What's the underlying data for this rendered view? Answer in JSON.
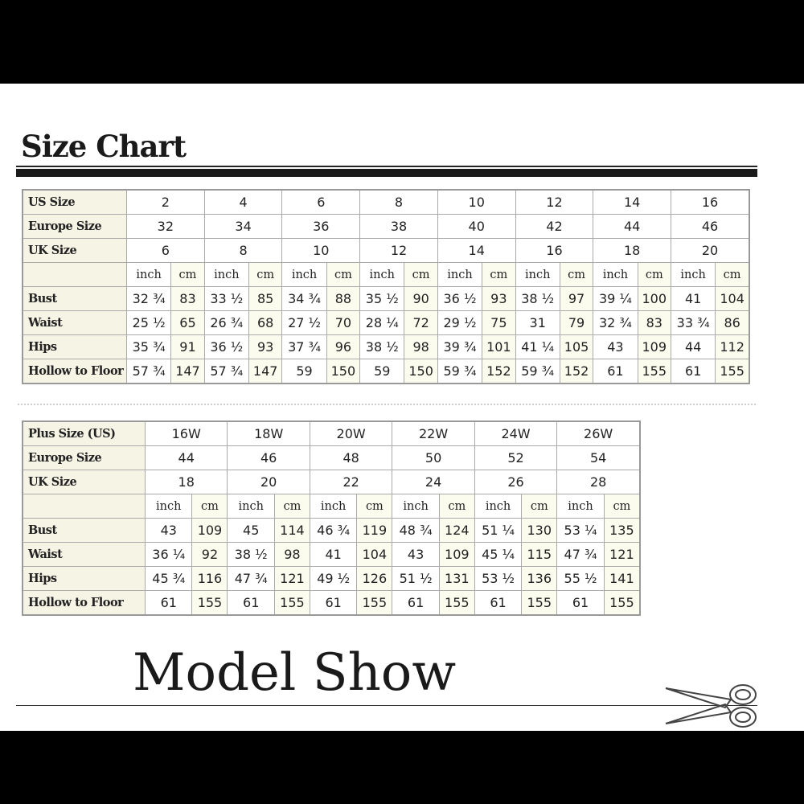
{
  "title": "Size Chart",
  "standard": {
    "header_rows": [
      {
        "label": "US Size",
        "values": [
          "2",
          "4",
          "6",
          "8",
          "10",
          "12",
          "14",
          "16"
        ]
      },
      {
        "label": "Europe Size",
        "values": [
          "32",
          "34",
          "36",
          "38",
          "40",
          "42",
          "44",
          "46"
        ]
      },
      {
        "label": "UK Size",
        "values": [
          "6",
          "8",
          "10",
          "12",
          "14",
          "16",
          "18",
          "20"
        ]
      }
    ],
    "units": [
      "inch",
      "cm"
    ],
    "measure_rows": [
      {
        "label": "Bust",
        "values": [
          "32 ¾",
          "83",
          "33 ½",
          "85",
          "34 ¾",
          "88",
          "35 ½",
          "90",
          "36 ½",
          "93",
          "38 ½",
          "97",
          "39 ¼",
          "100",
          "41",
          "104"
        ]
      },
      {
        "label": "Waist",
        "values": [
          "25 ½",
          "65",
          "26 ¾",
          "68",
          "27 ½",
          "70",
          "28 ¼",
          "72",
          "29 ½",
          "75",
          "31",
          "79",
          "32 ¾",
          "83",
          "33 ¾",
          "86"
        ]
      },
      {
        "label": "Hips",
        "values": [
          "35 ¾",
          "91",
          "36 ½",
          "93",
          "37 ¾",
          "96",
          "38 ½",
          "98",
          "39 ¾",
          "101",
          "41 ¼",
          "105",
          "43",
          "109",
          "44",
          "112"
        ]
      },
      {
        "label": "Hollow to Floor",
        "values": [
          "57 ¾",
          "147",
          "57 ¾",
          "147",
          "59",
          "150",
          "59",
          "150",
          "59 ¾",
          "152",
          "59 ¾",
          "152",
          "61",
          "155",
          "61",
          "155"
        ]
      }
    ]
  },
  "plus": {
    "header_rows": [
      {
        "label": "Plus Size (US)",
        "values": [
          "16W",
          "18W",
          "20W",
          "22W",
          "24W",
          "26W"
        ]
      },
      {
        "label": "Europe Size",
        "values": [
          "44",
          "46",
          "48",
          "50",
          "52",
          "54"
        ]
      },
      {
        "label": "UK Size",
        "values": [
          "18",
          "20",
          "22",
          "24",
          "26",
          "28"
        ]
      }
    ],
    "units": [
      "inch",
      "cm"
    ],
    "measure_rows": [
      {
        "label": "Bust",
        "values": [
          "43",
          "109",
          "45",
          "114",
          "46 ¾",
          "119",
          "48 ¾",
          "124",
          "51 ¼",
          "130",
          "53 ¼",
          "135"
        ]
      },
      {
        "label": "Waist",
        "values": [
          "36 ¼",
          "92",
          "38 ½",
          "98",
          "41",
          "104",
          "43",
          "109",
          "45 ¼",
          "115",
          "47 ¾",
          "121"
        ]
      },
      {
        "label": "Hips",
        "values": [
          "45 ¾",
          "116",
          "47 ¾",
          "121",
          "49 ½",
          "126",
          "51 ½",
          "131",
          "53 ½",
          "136",
          "55 ½",
          "141"
        ]
      },
      {
        "label": "Hollow to Floor",
        "values": [
          "61",
          "155",
          "61",
          "155",
          "61",
          "155",
          "61",
          "155",
          "61",
          "155",
          "61",
          "155"
        ]
      }
    ]
  },
  "model_show": "Model Show",
  "icons": {
    "divider": "scissors-icon"
  }
}
